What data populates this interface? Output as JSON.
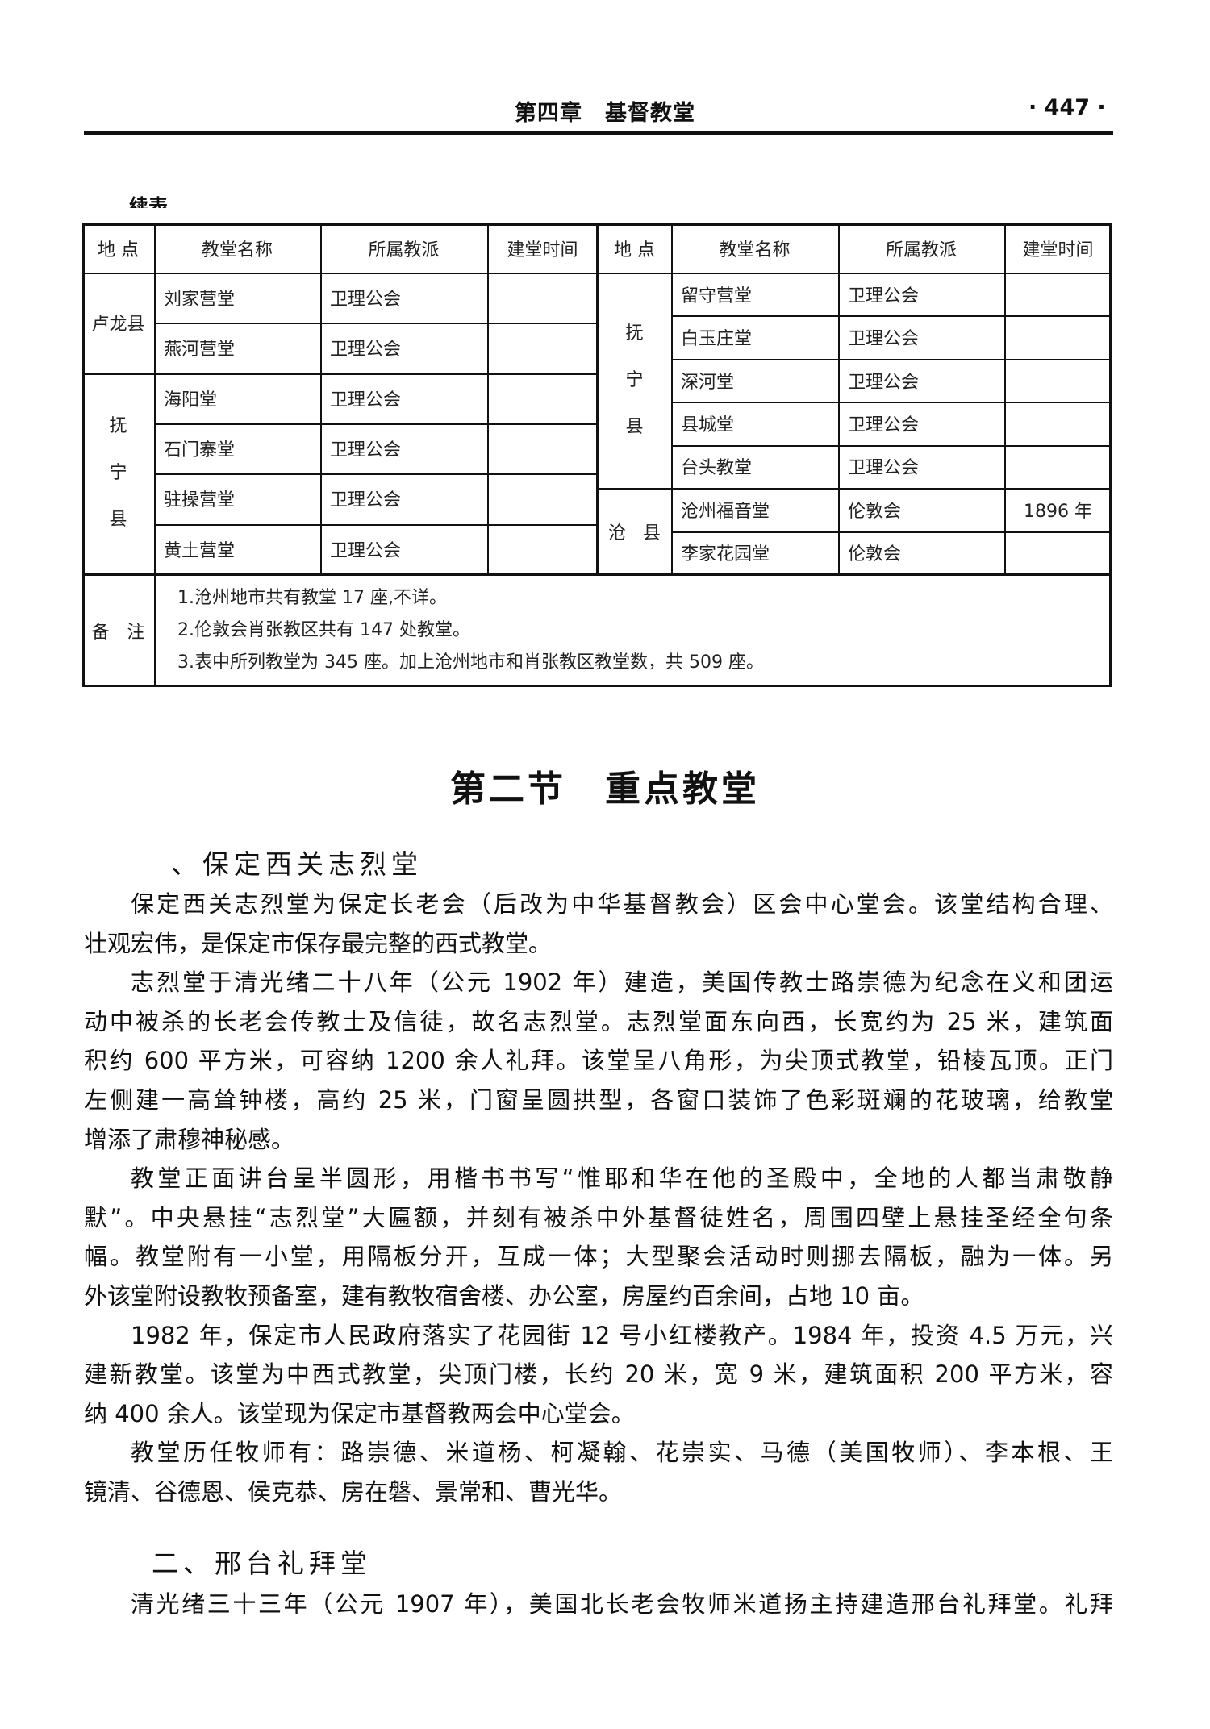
{
  "header": {
    "title": "第四章　基督教堂",
    "page_number": "· 447 ·"
  },
  "continued_label": "续表",
  "table": {
    "headers": [
      "地 点",
      "教堂名称",
      "所属教派",
      "建堂时间"
    ],
    "left": {
      "groups": [
        {
          "location": "卢龙县",
          "rows": 2
        },
        {
          "location": "抚宁县",
          "rows": 4
        }
      ],
      "rows": [
        {
          "name": "刘家营堂",
          "denomination": "卫理公会",
          "year": ""
        },
        {
          "name": "燕河营堂",
          "denomination": "卫理公会",
          "year": ""
        },
        {
          "name": "海阳堂",
          "denomination": "卫理公会",
          "year": ""
        },
        {
          "name": "石门寨堂",
          "denomination": "卫理公会",
          "year": ""
        },
        {
          "name": "驻操营堂",
          "denomination": "卫理公会",
          "year": ""
        },
        {
          "name": "黄土营堂",
          "denomination": "卫理公会",
          "year": ""
        }
      ]
    },
    "right": {
      "groups": [
        {
          "location": "抚宁县",
          "rows": 5
        },
        {
          "location": "沧 县",
          "rows": 2
        }
      ],
      "rows": [
        {
          "name": "留守营堂",
          "denomination": "卫理公会",
          "year": ""
        },
        {
          "name": "白玉庄堂",
          "denomination": "卫理公会",
          "year": ""
        },
        {
          "name": "深河堂",
          "denomination": "卫理公会",
          "year": ""
        },
        {
          "name": "县城堂",
          "denomination": "卫理公会",
          "year": ""
        },
        {
          "name": "台头教堂",
          "denomination": "卫理公会",
          "year": ""
        },
        {
          "name": "沧州福音堂",
          "denomination": "伦敦会",
          "year": "1896 年"
        },
        {
          "name": "李家花园堂",
          "denomination": "伦敦会",
          "year": ""
        }
      ]
    },
    "notes_label": "备　注",
    "notes": [
      "1.沧州地市共有教堂 17 座,不详。",
      "2.伦敦会肖张教区共有 147 处教堂。",
      "3.表中所列教堂为 345 座。加上沧州地市和肖张教区教堂数，共 509 座。"
    ]
  },
  "section": {
    "title": "第二节　重点教堂",
    "sub1": "、保定西关志烈堂",
    "sub1_lines": [
      {
        "t": "保定西关志烈堂为保定长老会（后改为中华基督教会）区会中心堂会。该堂结构合理、",
        "i": 1,
        "l": 0
      },
      {
        "t": "壮观宏伟，是保定市保存最完整的西式教堂。",
        "i": 0,
        "l": 1
      },
      {
        "t": "志烈堂于清光绪二十八年（公元 1902 年）建造，美国传教士路崇德为纪念在义和团运",
        "i": 1,
        "l": 0
      },
      {
        "t": "动中被杀的长老会传教士及信徒，故名志烈堂。志烈堂面东向西，长宽约为 25 米，建筑面",
        "i": 0,
        "l": 0
      },
      {
        "t": "积约 600 平方米，可容纳 1200 余人礼拜。该堂呈八角形，为尖顶式教堂，铅棱瓦顶。正门",
        "i": 0,
        "l": 0
      },
      {
        "t": "左侧建一高耸钟楼，高约 25 米，门窗呈圆拱型，各窗口装饰了色彩斑斓的花玻璃，给教堂",
        "i": 0,
        "l": 0
      },
      {
        "t": "增添了肃穆神秘感。",
        "i": 0,
        "l": 1
      },
      {
        "t": "教堂正面讲台呈半圆形，用楷书书写“惟耶和华在他的圣殿中，全地的人都当肃敬静",
        "i": 1,
        "l": 0
      },
      {
        "t": "默”。中央悬挂“志烈堂”大匾额，并刻有被杀中外基督徒姓名，周围四壁上悬挂圣经全句条",
        "i": 0,
        "l": 0
      },
      {
        "t": "幅。教堂附有一小堂，用隔板分开，互成一体；大型聚会活动时则挪去隔板，融为一体。另",
        "i": 0,
        "l": 0
      },
      {
        "t": "外该堂附设教牧预备室，建有教牧宿舍楼、办公室，房屋约百余间，占地 10 亩。",
        "i": 0,
        "l": 1
      },
      {
        "t": "1982 年，保定市人民政府落实了花园街 12 号小红楼教产。1984 年，投资 4.5 万元，兴",
        "i": 1,
        "l": 0
      },
      {
        "t": "建新教堂。该堂为中西式教堂，尖顶门楼，长约 20 米，宽 9 米，建筑面积 200 平方米，容",
        "i": 0,
        "l": 0
      },
      {
        "t": "纳 400 余人。该堂现为保定市基督教两会中心堂会。",
        "i": 0,
        "l": 1
      },
      {
        "t": "教堂历任牧师有：路崇德、米道杨、柯凝翰、花崇实、马德（美国牧师）、李本根、王",
        "i": 1,
        "l": 0
      },
      {
        "t": "镜清、谷德恩、侯克恭、房在磐、景常和、曹光华。",
        "i": 0,
        "l": 1
      }
    ],
    "sub2": "二、邢台礼拜堂",
    "sub2_lines": [
      {
        "t": "清光绪三十三年（公元 1907 年），美国北长老会牧师米道扬主持建造邢台礼拜堂。礼拜",
        "i": 1,
        "l": 0
      }
    ]
  }
}
